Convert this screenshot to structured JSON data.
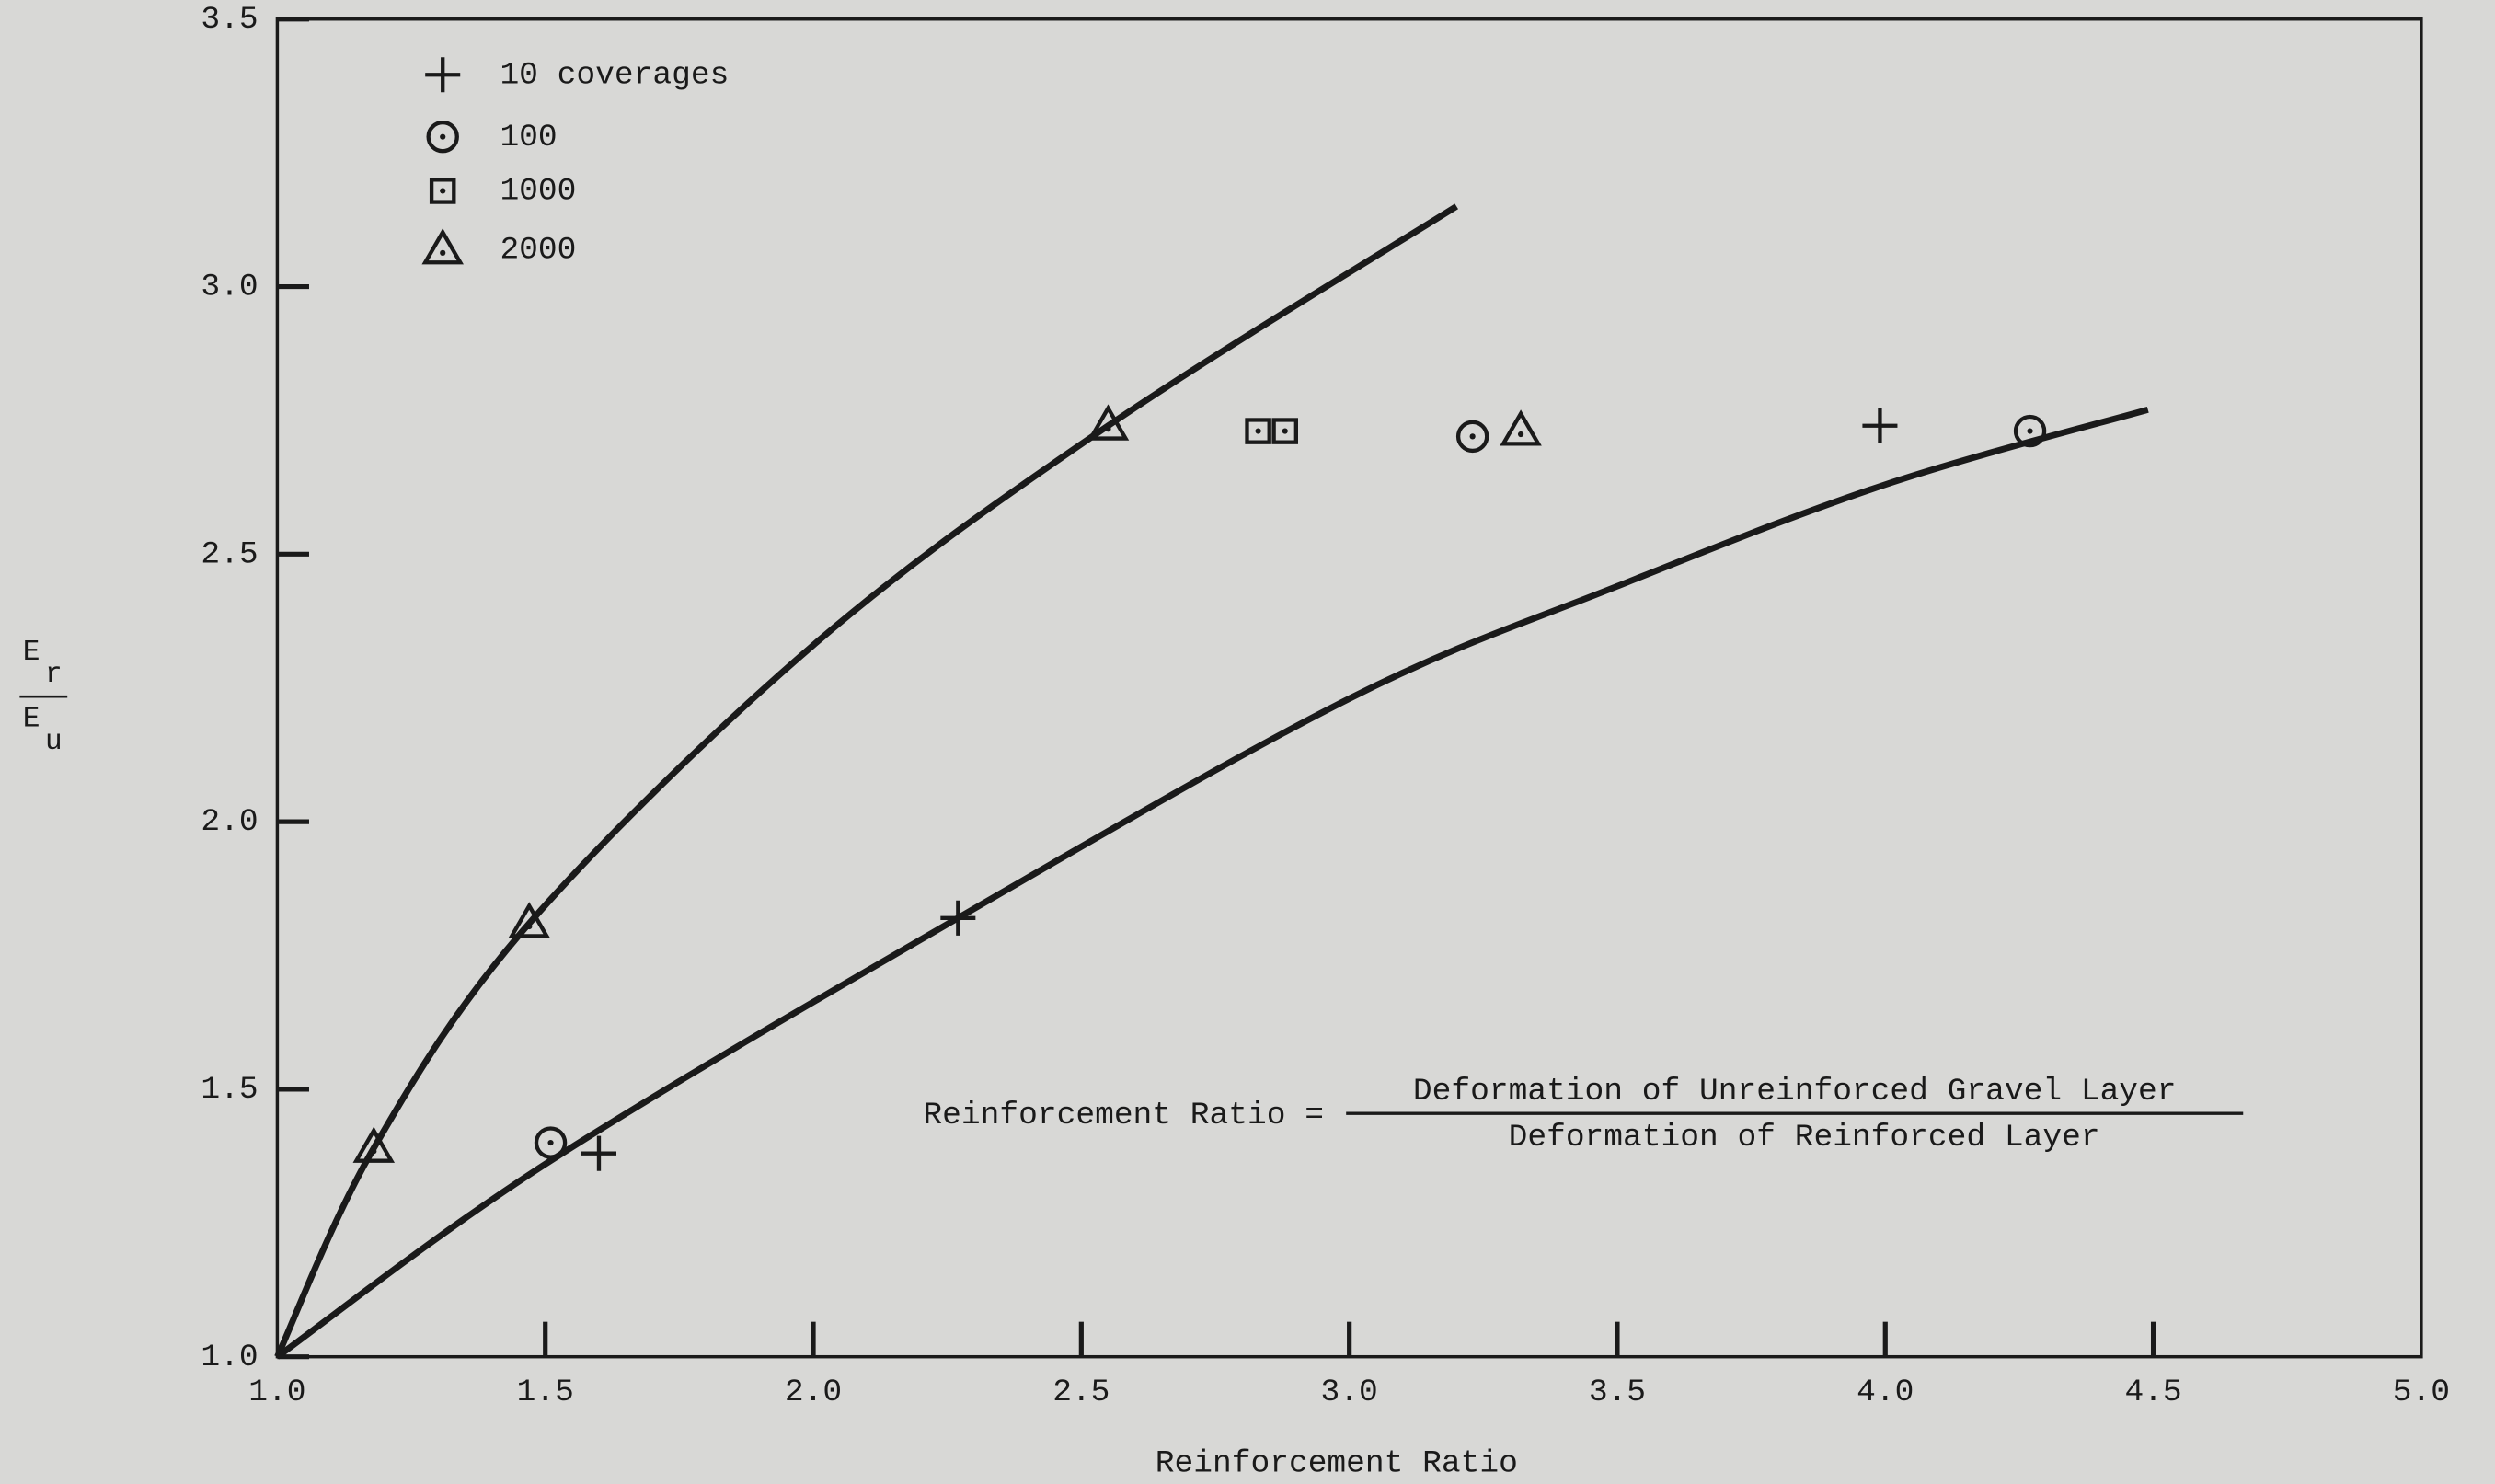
{
  "chart_data": {
    "type": "scatter",
    "xlabel": "Reinforcement Ratio",
    "ylabel": {
      "top": "E",
      "top_sub": "r",
      "bottom": "E",
      "bottom_sub": "u"
    },
    "annotation": {
      "lhs": "Reinforcement Ratio =",
      "numerator": "Deformation of Unreinforced Gravel Layer",
      "denominator": "Deformation of Reinforced Layer"
    },
    "xlim": [
      1.0,
      5.0
    ],
    "ylim": [
      1.0,
      3.5
    ],
    "xticks": [
      {
        "value": 1.0,
        "label": "1.0"
      },
      {
        "value": 1.5,
        "label": "1.5"
      },
      {
        "value": 2.0,
        "label": "2.0"
      },
      {
        "value": 2.5,
        "label": "2.5"
      },
      {
        "value": 3.0,
        "label": "3.0"
      },
      {
        "value": 3.5,
        "label": "3.5"
      },
      {
        "value": 4.0,
        "label": "4.0"
      },
      {
        "value": 4.5,
        "label": "4.5"
      },
      {
        "value": 5.0,
        "label": "5.0"
      }
    ],
    "yticks": [
      {
        "value": 1.0,
        "label": "1.0"
      },
      {
        "value": 1.5,
        "label": "1.5"
      },
      {
        "value": 2.0,
        "label": "2.0"
      },
      {
        "value": 2.5,
        "label": "2.5"
      },
      {
        "value": 3.0,
        "label": "3.0"
      },
      {
        "value": 3.5,
        "label": "3.5"
      }
    ],
    "legend": "upper left",
    "color": "#1a1a1a",
    "series": [
      {
        "name": "10 coverages",
        "marker": "plus",
        "x": [
          1.6,
          2.27,
          3.99
        ],
        "values": [
          1.38,
          1.82,
          2.74
        ]
      },
      {
        "name": "100",
        "marker": "circle",
        "x": [
          1.51,
          3.23,
          4.27
        ],
        "values": [
          1.4,
          2.72,
          2.73
        ]
      },
      {
        "name": "1000",
        "marker": "square",
        "x": [
          2.83,
          2.88
        ],
        "values": [
          2.73,
          2.73
        ]
      },
      {
        "name": "2000",
        "marker": "triangle",
        "x": [
          1.18,
          1.47,
          2.55,
          3.32
        ],
        "values": [
          1.39,
          1.81,
          2.74,
          2.73
        ]
      }
    ],
    "curves": [
      {
        "x": [
          1.0,
          1.18,
          1.47,
          2.0,
          2.55,
          3.2
        ],
        "y": [
          1.0,
          1.39,
          1.81,
          2.33,
          2.74,
          3.15
        ]
      },
      {
        "x": [
          1.0,
          1.5,
          2.27,
          3.0,
          3.5,
          4.0,
          4.49
        ],
        "y": [
          1.0,
          1.36,
          1.82,
          2.23,
          2.44,
          2.63,
          2.77
        ]
      }
    ]
  }
}
